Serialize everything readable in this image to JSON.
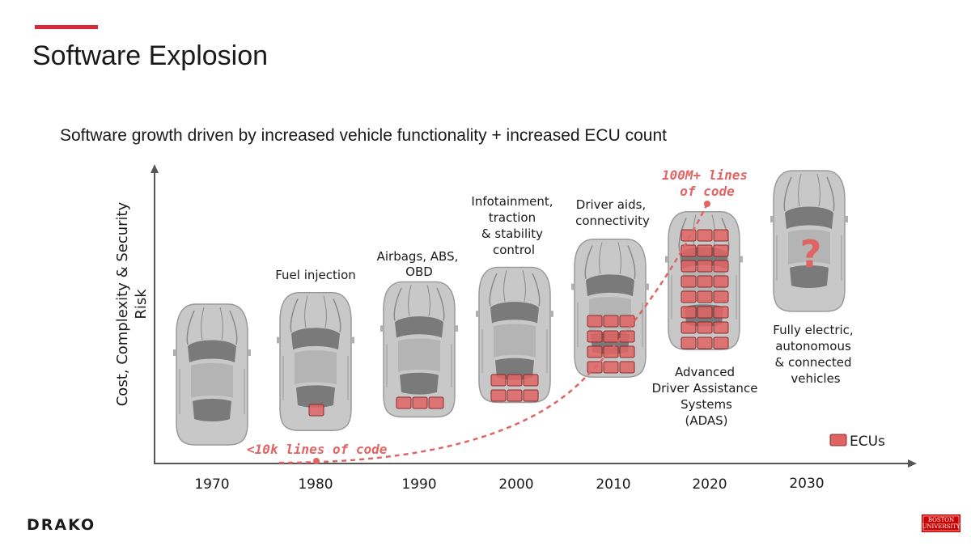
{
  "slide": {
    "title": "Software Explosion",
    "subtitle": "Software growth driven by increased vehicle functionality + increased ECU count"
  },
  "axis": {
    "y_label_line1": "Cost, Complexity & Security",
    "y_label_line2": "Risk"
  },
  "years": [
    "1970",
    "1980",
    "1990",
    "2000",
    "2010",
    "2020",
    "2030"
  ],
  "features": {
    "fuel_injection": "Fuel injection",
    "airbags": [
      "Airbags, ABS,",
      "OBD"
    ],
    "infotainment": [
      "Infotainment,",
      "traction",
      "& stability",
      "control"
    ],
    "driver_aids": [
      "Driver aids,",
      "connectivity"
    ],
    "adas": [
      "Advanced",
      "Driver Assistance",
      "Systems",
      "(ADAS)"
    ],
    "fully_electric": [
      "Fully electric,",
      "autonomous",
      "& connected",
      "vehicles"
    ]
  },
  "code_lines": {
    "start": "<10k lines of code",
    "end_line1": "100M+ lines",
    "end_line2": "of code"
  },
  "future_marker": "?",
  "legend": {
    "label": "ECUs"
  },
  "logos": {
    "drako": "DRAKO",
    "bu_line1": "BOSTON",
    "bu_line2": "UNIVERSITY"
  },
  "colors": {
    "accent": "#d9293a",
    "ecu": "#e06464",
    "car": "#c8c8c8"
  }
}
